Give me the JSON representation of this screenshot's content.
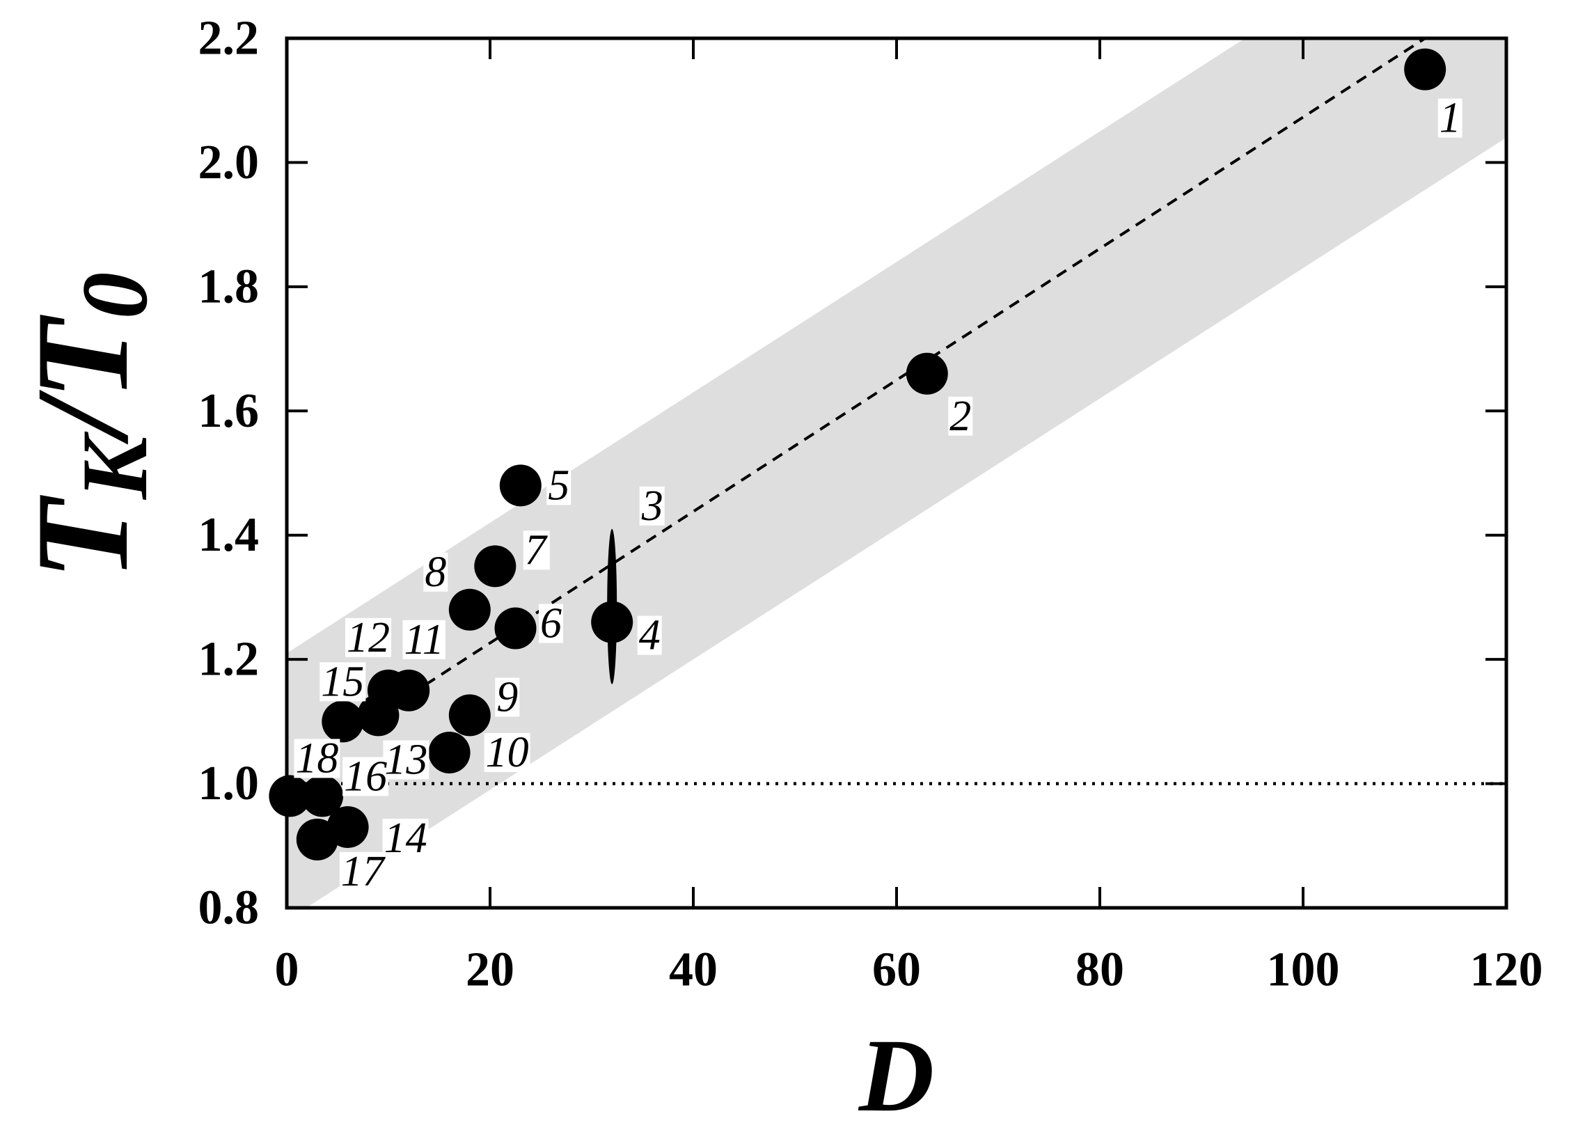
{
  "chart_data": {
    "type": "scatter",
    "xlabel": "D",
    "ylabel": [
      {
        "text": "T"
      },
      {
        "text": "K",
        "sub": true
      },
      {
        "text": "/"
      },
      {
        "text": "T"
      },
      {
        "text": "0",
        "sub": true
      }
    ],
    "xlim": [
      0,
      120
    ],
    "ylim": [
      0.8,
      2.2
    ],
    "xticks": [
      "0",
      "20",
      "40",
      "60",
      "80",
      "100",
      "120"
    ],
    "yticks": [
      "0.8",
      "1.0",
      "1.2",
      "1.4",
      "1.6",
      "1.8",
      "2.0",
      "2.2"
    ],
    "grid": false,
    "points": [
      {
        "label": "1",
        "x": 112,
        "y": 2.15
      },
      {
        "label": "2",
        "x": 63,
        "y": 1.66
      },
      {
        "label": "3",
        "x": 32,
        "y_min": 1.16,
        "y_max": 1.41
      },
      {
        "label": "4",
        "x": 32,
        "y": 1.26
      },
      {
        "label": "5",
        "x": 23,
        "y": 1.48
      },
      {
        "label": "6",
        "x": 22.5,
        "y": 1.25
      },
      {
        "label": "7",
        "x": 20.5,
        "y": 1.35
      },
      {
        "label": "8",
        "x": 18,
        "y": 1.28
      },
      {
        "label": "9",
        "x": 18,
        "y": 1.11
      },
      {
        "label": "10",
        "x": 16,
        "y": 1.05
      },
      {
        "label": "11",
        "x": 12,
        "y": 1.15
      },
      {
        "label": "12",
        "x": 10,
        "y": 1.15
      },
      {
        "label": "13",
        "x": 9,
        "y": 1.11
      },
      {
        "label": "14",
        "x": 6,
        "y": 0.93
      },
      {
        "label": "15",
        "x": 5.5,
        "y": 1.1
      },
      {
        "label": "16",
        "x": 3.5,
        "y": 0.98
      },
      {
        "label": "17",
        "x": 3,
        "y": 0.91
      },
      {
        "label": "18",
        "x": 0.3,
        "y": 0.98
      }
    ],
    "fit_line": {
      "style": "dashed",
      "x": [
        9,
        112
      ],
      "y": [
        1.11,
        2.2
      ]
    },
    "band": {
      "x": [
        0,
        120
      ],
      "upper": [
        1.21,
        2.47
      ],
      "lower": [
        0.78,
        2.04
      ]
    },
    "reference_line": {
      "style": "dotted",
      "y": 1.0
    },
    "colors": {
      "points": "#000000",
      "band": "#dedede",
      "lines": "#000000",
      "axes": "#000000"
    }
  }
}
